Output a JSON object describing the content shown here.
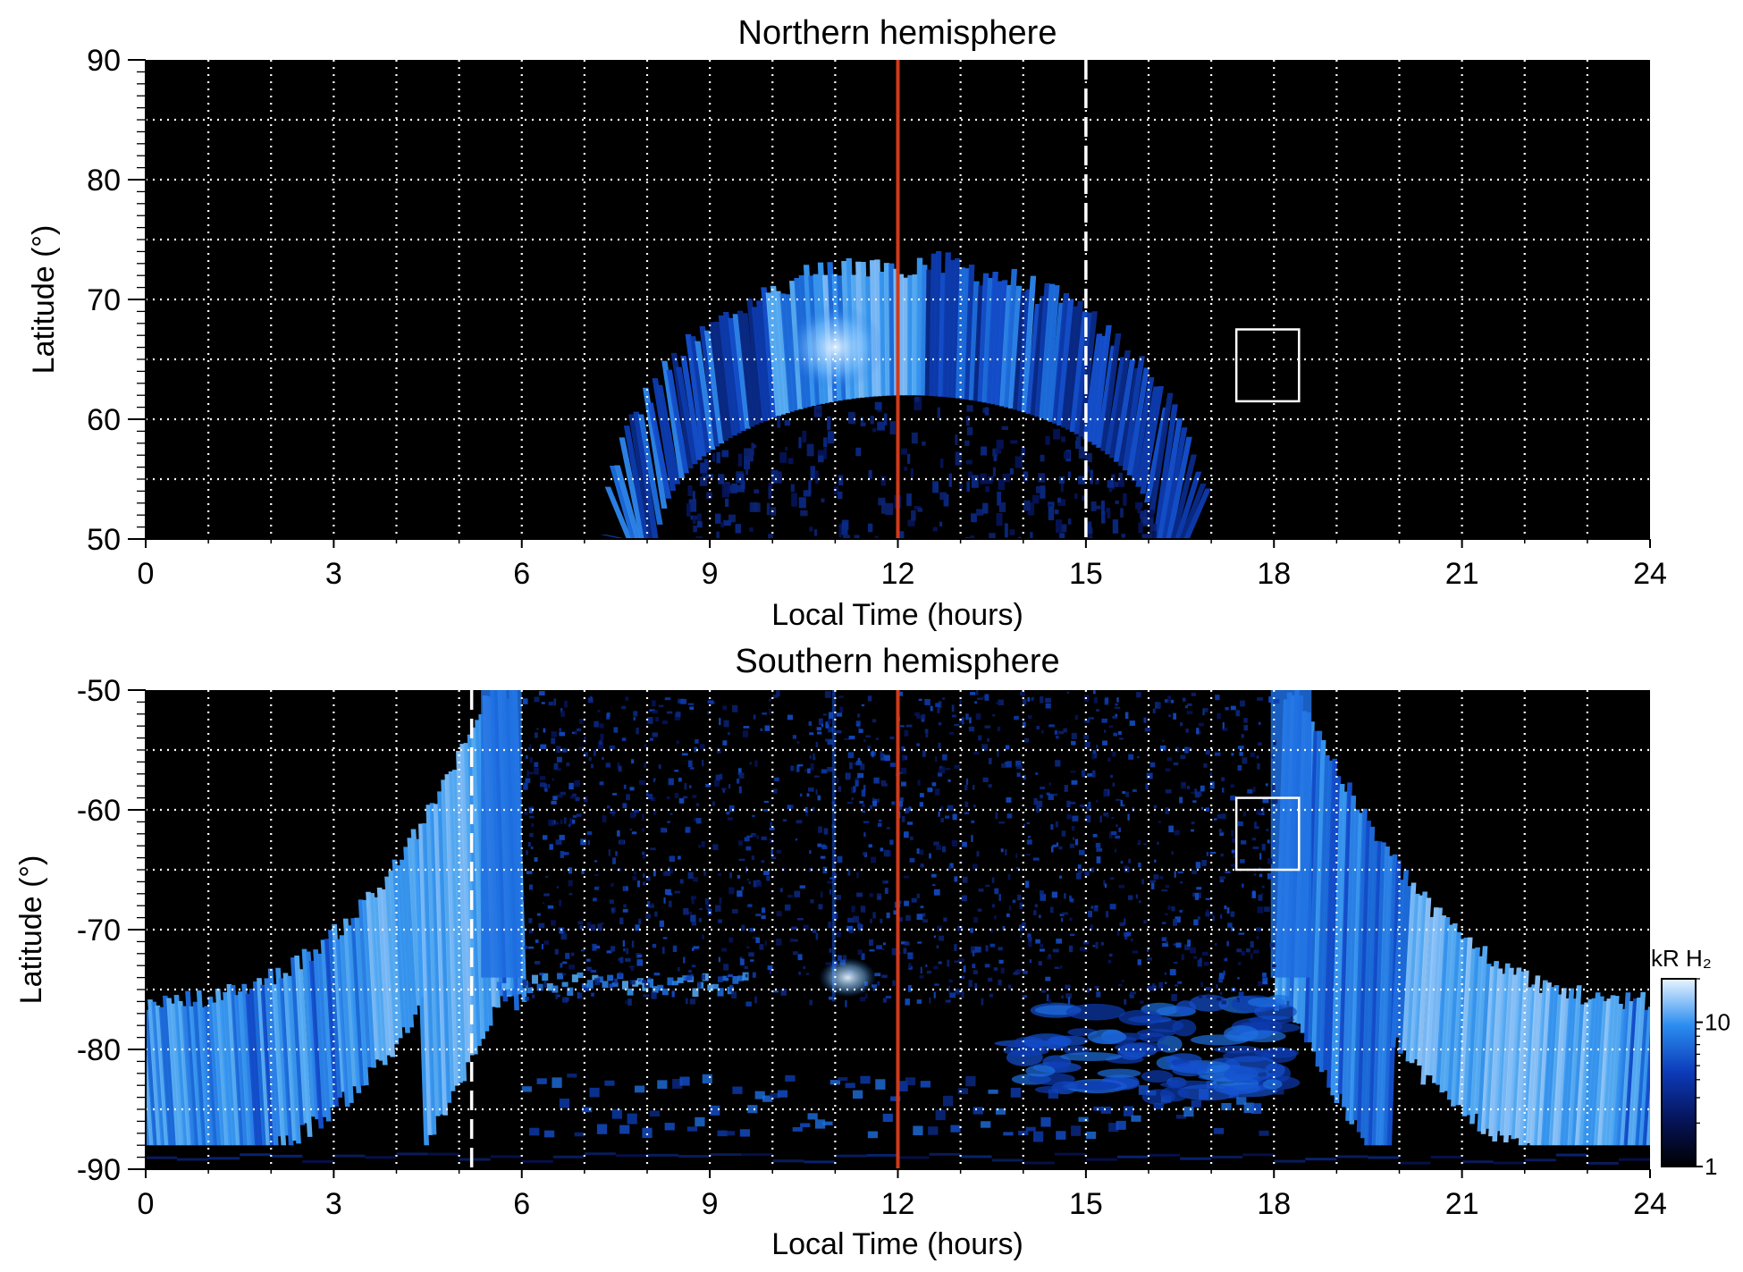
{
  "chart_data": [
    {
      "type": "heatmap",
      "title": "Northern hemisphere",
      "xlabel": "Local Time (hours)",
      "ylabel": "Latitude (°)",
      "xlim": [
        0,
        24
      ],
      "ylim": [
        50,
        90
      ],
      "x_ticks": [
        "0",
        "3",
        "6",
        "9",
        "12",
        "15",
        "18",
        "21",
        "24"
      ],
      "y_ticks": [
        "50",
        "60",
        "70",
        "80",
        "90"
      ],
      "grid": true,
      "noon_line_lt": 12,
      "dashed_line_lt": 15,
      "box": {
        "lt": [
          17.4,
          18.4
        ],
        "lat": [
          61.5,
          67.5
        ]
      },
      "auroral_oval": {
        "lt_range": [
          7.6,
          16.6
        ],
        "peak_lat_outer": 73,
        "peak_lat_inner": 62,
        "bright_region_lt": [
          10.0,
          12.0
        ]
      }
    },
    {
      "type": "heatmap",
      "title": "Southern hemisphere",
      "xlabel": "Local Time (hours)",
      "ylabel": "Latitude (°)",
      "xlim": [
        0,
        24
      ],
      "ylim": [
        -90,
        -50
      ],
      "x_ticks": [
        "0",
        "3",
        "6",
        "9",
        "12",
        "15",
        "18",
        "21",
        "24"
      ],
      "y_ticks": [
        "-90",
        "-80",
        "-70",
        "-60",
        "-50"
      ],
      "grid": true,
      "noon_line_lt": 12,
      "dashed_line_lt": 5.2,
      "box": {
        "lt": [
          17.4,
          18.4
        ],
        "lat": [
          -65,
          -59
        ]
      },
      "auroral_oval": {
        "dawn_arc_lt": [
          0,
          6
        ],
        "dusk_arc_lt": [
          18,
          24
        ],
        "floor_lat": -76,
        "bright_spot_lt": 11.2,
        "bright_spot_lat": -74
      },
      "colorbar": {
        "label": "kR H₂",
        "scale": "log",
        "range": [
          1,
          20
        ],
        "ticks": [
          "1",
          "10"
        ]
      }
    }
  ],
  "colors": {
    "background": "#000000",
    "aurora_dim": "#0a2a88",
    "aurora_mid": "#1e6fe0",
    "aurora_bright": "#7ec0ff",
    "aurora_peak": "#d8ecff",
    "noon_line": "#d03a1a",
    "grid": "#ffffff"
  }
}
